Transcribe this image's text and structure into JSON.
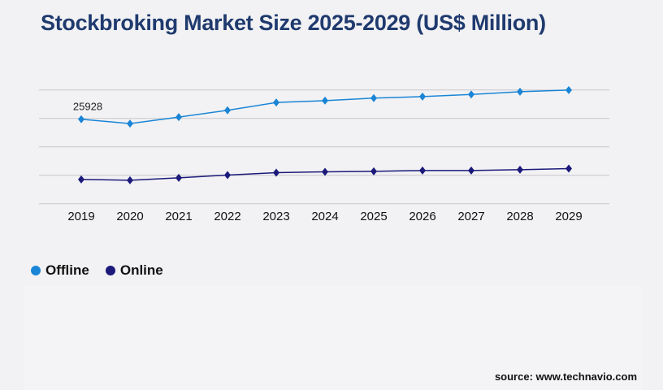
{
  "title": "Stockbroking Market Size 2025-2029 (US$ Million)",
  "source": "source: www.technavio.com",
  "chart_data": {
    "type": "line",
    "title": "Stockbroking Market Size 2025-2029 (US$ Million)",
    "categories": [
      "2019",
      "2020",
      "2021",
      "2022",
      "2023",
      "2024",
      "2025",
      "2026",
      "2027",
      "2028",
      "2029"
    ],
    "series": [
      {
        "name": "Offline",
        "color": "#1a85d6",
        "values": [
          25928,
          24580,
          26570,
          28650,
          31040,
          31630,
          32380,
          32870,
          33520,
          34360,
          34860
        ]
      },
      {
        "name": "Online",
        "color": "#1b1a7a",
        "values": [
          7450,
          7200,
          7940,
          8790,
          9530,
          9780,
          9930,
          10180,
          10180,
          10430,
          10770
        ]
      }
    ],
    "data_labels": [
      {
        "series": "Offline",
        "category": "2019",
        "text": "25928"
      }
    ],
    "ylim": [
      0,
      34900
    ],
    "y_gridlines": 5,
    "y_tick_labels_shown": false,
    "grid": true,
    "legend_position": "bottom-left",
    "marker": "diamond"
  }
}
